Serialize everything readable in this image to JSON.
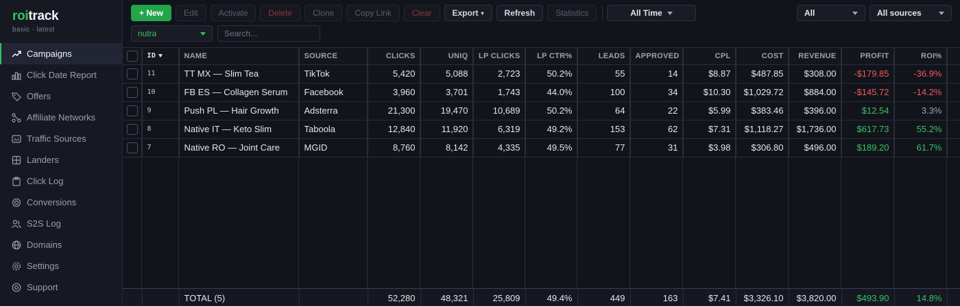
{
  "brand": {
    "name_accent": "roi",
    "name_rest": "track",
    "subtitle": "basic · latest"
  },
  "sidebar": {
    "items": [
      {
        "label": "Campaigns",
        "icon": "trend-up-icon",
        "active": true
      },
      {
        "label": "Click Date Report",
        "icon": "bar-chart-icon"
      },
      {
        "label": "Offers",
        "icon": "tag-icon"
      },
      {
        "label": "Affiliate Networks",
        "icon": "network-icon"
      },
      {
        "label": "Traffic Sources",
        "icon": "ad-icon"
      },
      {
        "label": "Landers",
        "icon": "grid-icon"
      },
      {
        "label": "Click Log",
        "icon": "clipboard-icon"
      },
      {
        "label": "Conversions",
        "icon": "target-icon"
      },
      {
        "label": "S2S Log",
        "icon": "users-icon"
      },
      {
        "label": "Domains",
        "icon": "globe-icon"
      },
      {
        "label": "Settings",
        "icon": "gear-icon"
      },
      {
        "label": "Support",
        "icon": "help-icon"
      }
    ]
  },
  "toolbar": {
    "new_label": "+ New",
    "edit_label": "Edit",
    "activate_label": "Activate",
    "delete_label": "Delete",
    "clone_label": "Clone",
    "copy_link_label": "Copy Link",
    "clear_label": "Clear",
    "export_label": "Export",
    "export_caret": "▾",
    "refresh_label": "Refresh",
    "statistics_label": "Statistics",
    "range_label": "All Time",
    "status_filter": "All",
    "source_filter": "All sources"
  },
  "filters": {
    "group": "nutra",
    "search_placeholder": "Search..."
  },
  "table": {
    "headers": {
      "id": "ID",
      "name": "NAME",
      "source": "SOURCE",
      "clicks": "CLICKS",
      "uniq": "UNIQ",
      "lp_clicks": "LP CLICKS",
      "lp_ctr": "LP CTR%",
      "leads": "LEADS",
      "approved": "APPROVED",
      "cpl": "CPL",
      "cost": "COST",
      "revenue": "REVENUE",
      "profit": "PROFIT",
      "roi": "ROI%"
    },
    "rows": [
      {
        "id": "11",
        "name": "TT MX — Slim Tea",
        "source": "TikTok",
        "clicks": "5,420",
        "uniq": "5,088",
        "lp_clicks": "2,723",
        "lp_ctr": "50.2%",
        "leads": "55",
        "approved": "14",
        "cpl": "$8.87",
        "cost": "$487.85",
        "revenue": "$308.00",
        "profit": "-$179.85",
        "roi": "-36.9%",
        "profit_sign": "neg",
        "roi_sign": "neg"
      },
      {
        "id": "10",
        "name": "FB ES — Collagen Serum",
        "source": "Facebook",
        "clicks": "3,960",
        "uniq": "3,701",
        "lp_clicks": "1,743",
        "lp_ctr": "44.0%",
        "leads": "100",
        "approved": "34",
        "cpl": "$10.30",
        "cost": "$1,029.72",
        "revenue": "$884.00",
        "profit": "-$145.72",
        "roi": "-14.2%",
        "profit_sign": "neg",
        "roi_sign": "neg"
      },
      {
        "id": "9",
        "name": "Push PL — Hair Growth",
        "source": "Adsterra",
        "clicks": "21,300",
        "uniq": "19,470",
        "lp_clicks": "10,689",
        "lp_ctr": "50.2%",
        "leads": "64",
        "approved": "22",
        "cpl": "$5.99",
        "cost": "$383.46",
        "revenue": "$396.00",
        "profit": "$12.54",
        "roi": "3.3%",
        "profit_sign": "pos",
        "roi_sign": "muted"
      },
      {
        "id": "8",
        "name": "Native IT — Keto Slim",
        "source": "Taboola",
        "clicks": "12,840",
        "uniq": "11,920",
        "lp_clicks": "6,319",
        "lp_ctr": "49.2%",
        "leads": "153",
        "approved": "62",
        "cpl": "$7.31",
        "cost": "$1,118.27",
        "revenue": "$1,736.00",
        "profit": "$617.73",
        "roi": "55.2%",
        "profit_sign": "pos",
        "roi_sign": "pos"
      },
      {
        "id": "7",
        "name": "Native RO — Joint Care",
        "source": "MGID",
        "clicks": "8,760",
        "uniq": "8,142",
        "lp_clicks": "4,335",
        "lp_ctr": "49.5%",
        "leads": "77",
        "approved": "31",
        "cpl": "$3.98",
        "cost": "$306.80",
        "revenue": "$496.00",
        "profit": "$189.20",
        "roi": "61.7%",
        "profit_sign": "pos",
        "roi_sign": "pos"
      }
    ],
    "totals": {
      "label": "TOTAL (5)",
      "clicks": "52,280",
      "uniq": "48,321",
      "lp_clicks": "25,809",
      "lp_ctr": "49.4%",
      "leads": "449",
      "approved": "163",
      "cpl": "$7.41",
      "cost": "$3,326.10",
      "revenue": "$3,820.00",
      "profit": "$493.90",
      "roi": "14.8%"
    }
  },
  "colors": {
    "accent": "#31c25e",
    "negative": "#ec5a5a",
    "background": "#12141b"
  }
}
